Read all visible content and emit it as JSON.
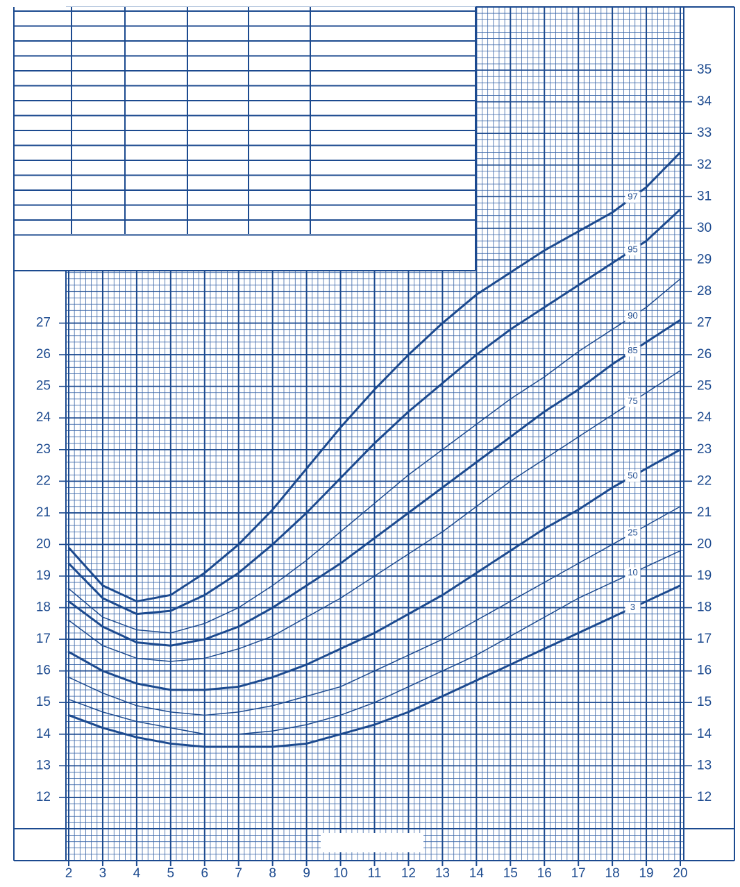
{
  "chart_data": {
    "type": "line",
    "x": [
      2,
      3,
      4,
      5,
      6,
      7,
      8,
      9,
      10,
      11,
      12,
      13,
      14,
      15,
      16,
      17,
      18,
      19,
      20
    ],
    "xlim": [
      2,
      20
    ],
    "xticks": [
      2,
      3,
      4,
      5,
      6,
      7,
      8,
      9,
      10,
      11,
      12,
      13,
      14,
      15,
      16,
      17,
      18,
      19,
      20
    ],
    "ylim": [
      10,
      37
    ],
    "yticks": [
      12,
      13,
      14,
      15,
      16,
      17,
      18,
      19,
      20,
      21,
      22,
      23,
      24,
      25,
      26,
      27
    ],
    "y2lim": [
      10,
      37
    ],
    "y2ticks": [
      12,
      13,
      14,
      15,
      16,
      17,
      18,
      19,
      20,
      21,
      22,
      23,
      24,
      25,
      26,
      27,
      28,
      29,
      30,
      31,
      32,
      33,
      34,
      35
    ],
    "grid": true,
    "color": "#1c4a8f",
    "series": [
      {
        "name": "3",
        "line_width": 3,
        "values": [
          14.6,
          14.2,
          13.9,
          13.7,
          13.6,
          13.6,
          13.6,
          13.7,
          14.0,
          14.3,
          14.7,
          15.2,
          15.7,
          16.2,
          16.7,
          17.2,
          17.7,
          18.2,
          18.7
        ]
      },
      {
        "name": "10",
        "line_width": 1.5,
        "values": [
          15.1,
          14.7,
          14.4,
          14.2,
          14.0,
          14.0,
          14.1,
          14.3,
          14.6,
          15.0,
          15.5,
          16.0,
          16.5,
          17.1,
          17.7,
          18.3,
          18.8,
          19.3,
          19.8
        ]
      },
      {
        "name": "25",
        "line_width": 1.5,
        "values": [
          15.8,
          15.3,
          14.9,
          14.7,
          14.6,
          14.7,
          14.9,
          15.2,
          15.5,
          16.0,
          16.5,
          17.0,
          17.6,
          18.2,
          18.8,
          19.4,
          20.0,
          20.6,
          21.2
        ]
      },
      {
        "name": "50",
        "line_width": 3,
        "values": [
          16.6,
          16.0,
          15.6,
          15.4,
          15.4,
          15.5,
          15.8,
          16.2,
          16.7,
          17.2,
          17.8,
          18.4,
          19.1,
          19.8,
          20.5,
          21.1,
          21.8,
          22.4,
          23.0
        ]
      },
      {
        "name": "75",
        "line_width": 1.5,
        "values": [
          17.6,
          16.8,
          16.4,
          16.3,
          16.4,
          16.7,
          17.1,
          17.7,
          18.3,
          19.0,
          19.7,
          20.4,
          21.2,
          22.0,
          22.7,
          23.4,
          24.1,
          24.8,
          25.5
        ]
      },
      {
        "name": "85",
        "line_width": 3,
        "values": [
          18.2,
          17.4,
          16.9,
          16.8,
          17.0,
          17.4,
          18.0,
          18.7,
          19.4,
          20.2,
          21.0,
          21.8,
          22.6,
          23.4,
          24.2,
          24.9,
          25.7,
          26.4,
          27.1
        ]
      },
      {
        "name": "90",
        "line_width": 1.5,
        "values": [
          18.6,
          17.7,
          17.3,
          17.2,
          17.5,
          18.0,
          18.7,
          19.5,
          20.4,
          21.3,
          22.2,
          23.0,
          23.8,
          24.6,
          25.3,
          26.1,
          26.8,
          27.5,
          28.4
        ]
      },
      {
        "name": "95",
        "line_width": 3,
        "values": [
          19.4,
          18.3,
          17.8,
          17.9,
          18.4,
          19.1,
          20.0,
          21.0,
          22.1,
          23.2,
          24.2,
          25.1,
          26.0,
          26.8,
          27.5,
          28.2,
          28.9,
          29.6,
          30.6
        ]
      },
      {
        "name": "97",
        "line_width": 3,
        "values": [
          19.9,
          18.7,
          18.2,
          18.4,
          19.1,
          20.0,
          21.1,
          22.4,
          23.7,
          24.9,
          26.0,
          27.0,
          27.9,
          28.6,
          29.3,
          29.9,
          30.5,
          31.3,
          32.4
        ]
      }
    ]
  }
}
